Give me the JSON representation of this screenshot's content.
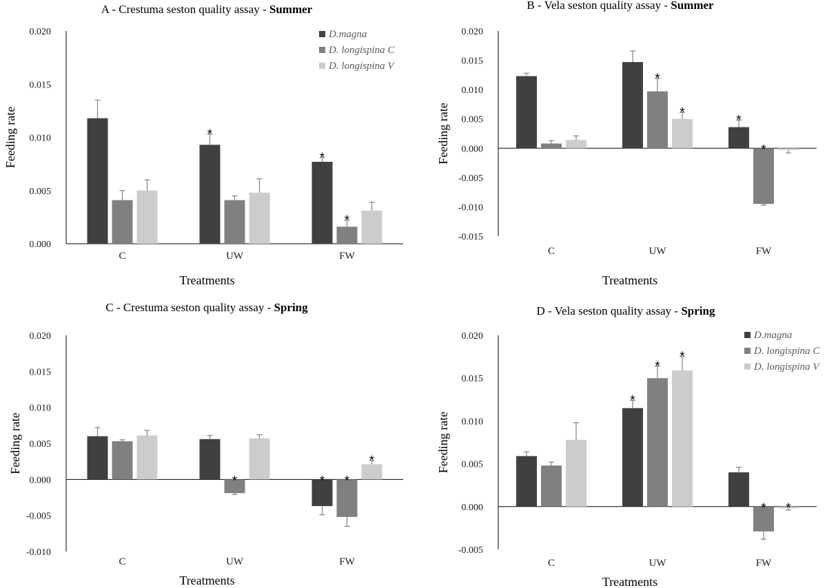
{
  "chart_data": [
    {
      "type": "bar",
      "title_prefix": "A - Crestuma seston quality assay - ",
      "title_season": "Summer",
      "xlabel": "Treatments",
      "ylabel": "Feeding rate",
      "categories": [
        "C",
        "UW",
        "FW"
      ],
      "ylim": [
        0,
        0.02
      ],
      "yticks": [
        "0.000",
        "0.005",
        "0.010",
        "0.015",
        "0.020"
      ],
      "legend": true,
      "series": [
        {
          "name": "D.magna",
          "values": [
            0.0118,
            0.0093,
            0.0077
          ],
          "errors": [
            0.0017,
            0.001,
            0.0004
          ],
          "sig": [
            false,
            true,
            true
          ]
        },
        {
          "name": "D. longispina C",
          "values": [
            0.0041,
            0.0041,
            0.0016
          ],
          "errors": [
            0.0009,
            0.0004,
            0.0006
          ],
          "sig": [
            false,
            false,
            true
          ]
        },
        {
          "name": "D. longispina V",
          "values": [
            0.005,
            0.0048,
            0.0031
          ],
          "errors": [
            0.001,
            0.0013,
            0.0008
          ],
          "sig": [
            false,
            false,
            false
          ]
        }
      ]
    },
    {
      "type": "bar",
      "title_prefix": "B - Vela seston quality assay - ",
      "title_season": "Summer",
      "xlabel": "Treatments",
      "ylabel": "Feeding rate",
      "categories": [
        "C",
        "UW",
        "FW"
      ],
      "ylim": [
        -0.015,
        0.02
      ],
      "yticks": [
        "-0.015",
        "-0.010",
        "-0.005",
        "0.000",
        "0.005",
        "0.010",
        "0.015",
        "0.020"
      ],
      "legend": false,
      "series": [
        {
          "name": "D.magna",
          "values": [
            0.0123,
            0.0147,
            0.0036
          ],
          "errors": [
            0.0005,
            0.0019,
            0.0012
          ],
          "sig": [
            false,
            false,
            true
          ]
        },
        {
          "name": "D. longispina C",
          "values": [
            0.0008,
            0.0097,
            -0.0095
          ],
          "errors": [
            0.0005,
            0.0022,
            0.0002
          ],
          "sig": [
            false,
            true,
            true
          ]
        },
        {
          "name": "D. longispina V",
          "values": [
            0.0014,
            0.005,
            -0.0003
          ],
          "errors": [
            0.0007,
            0.0011,
            0.0005
          ],
          "sig": [
            false,
            true,
            false
          ]
        }
      ]
    },
    {
      "type": "bar",
      "title_prefix": "C - Crestuma seston quality assay - ",
      "title_season": "Spring",
      "xlabel": "Treatments",
      "ylabel": "Feeding rate",
      "categories": [
        "C",
        "UW",
        "FW"
      ],
      "ylim": [
        -0.01,
        0.02
      ],
      "yticks": [
        "-0.010",
        "-0.005",
        "0.000",
        "0.005",
        "0.010",
        "0.015",
        "0.020"
      ],
      "legend": false,
      "series": [
        {
          "name": "D.magna",
          "values": [
            0.006,
            0.0056,
            -0.0037
          ],
          "errors": [
            0.0012,
            0.0005,
            0.0012
          ],
          "sig": [
            false,
            false,
            true
          ]
        },
        {
          "name": "D. longispina C",
          "values": [
            0.0053,
            -0.0019,
            -0.0052
          ],
          "errors": [
            0.0002,
            0.0002,
            0.0013
          ],
          "sig": [
            false,
            true,
            true
          ]
        },
        {
          "name": "D. longispina V",
          "values": [
            0.0061,
            0.0057,
            0.0021
          ],
          "errors": [
            0.0007,
            0.0005,
            0.0005
          ],
          "sig": [
            false,
            false,
            true
          ]
        }
      ]
    },
    {
      "type": "bar",
      "title_prefix": "D - Vela seston quality assay - ",
      "title_season": "Spring",
      "xlabel": "Treatments",
      "ylabel": "Feeding rate",
      "categories": [
        "C",
        "UW",
        "FW"
      ],
      "ylim": [
        -0.005,
        0.02
      ],
      "yticks": [
        "-0.005",
        "0.000",
        "0.005",
        "0.010",
        "0.015",
        "0.020"
      ],
      "legend": true,
      "series": [
        {
          "name": "D.magna",
          "values": [
            0.0059,
            0.0115,
            0.004
          ],
          "errors": [
            0.0005,
            0.0009,
            0.0006
          ],
          "sig": [
            false,
            true,
            false
          ]
        },
        {
          "name": "D. longispina C",
          "values": [
            0.0048,
            0.015,
            -0.0029
          ],
          "errors": [
            0.0004,
            0.0014,
            0.0009
          ],
          "sig": [
            false,
            true,
            true
          ]
        },
        {
          "name": "D. longispina V",
          "values": [
            0.0078,
            0.0159,
            -0.0002
          ],
          "errors": [
            0.002,
            0.0016,
            0.0002
          ],
          "sig": [
            false,
            true,
            true
          ]
        }
      ]
    }
  ],
  "colors": {
    "series": [
      "#404040",
      "#808080",
      "#cccccc"
    ],
    "axis": "#000000",
    "errorbar": "#808080",
    "legend_text": "#595959"
  }
}
